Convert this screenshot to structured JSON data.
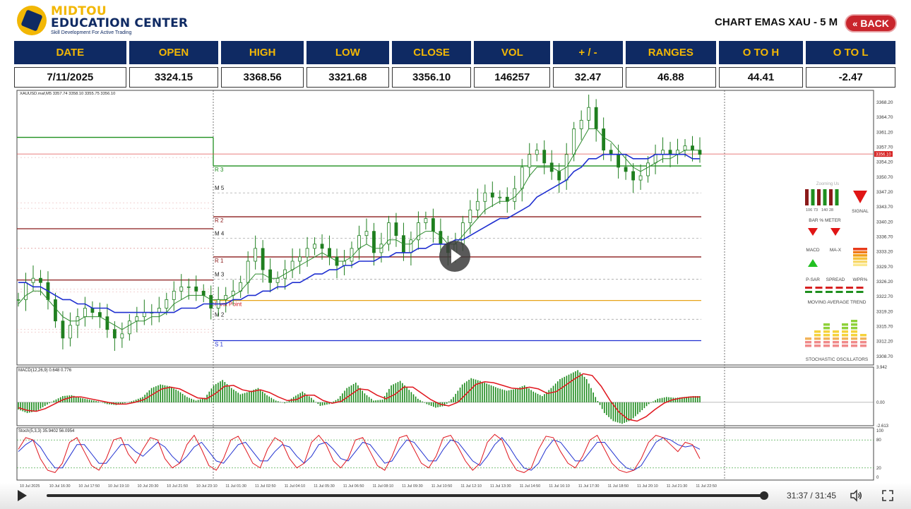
{
  "header": {
    "logo_line1": "MIDTOU",
    "logo_line2": "EDUCATION CENTER",
    "logo_line3": "Skill Development For Active Trading",
    "title": "CHART EMAS XAU - 5 M",
    "back_label": "BACK"
  },
  "stats": {
    "headers": [
      "DATE",
      "OPEN",
      "HIGH",
      "LOW",
      "CLOSE",
      "VOL",
      "+ / -",
      "RANGES",
      "O TO H",
      "O TO L"
    ],
    "values": [
      "7/11/2025",
      "3324.15",
      "3368.56",
      "3321.68",
      "3356.10",
      "146257",
      "32.47",
      "46.88",
      "44.41",
      "-2.47"
    ]
  },
  "player": {
    "time": "31:37 / 31:45",
    "progress": 0.9958
  },
  "colors": {
    "navy": "#0f2a63",
    "gold": "#f2b705",
    "back_red": "#c9252c",
    "candle_green": "#1f8f1f",
    "ema_fast": "#2e8b2e",
    "ema_slow": "#1f2fd0",
    "macd_signal": "#e0161e",
    "stoch_k": "#e0161e",
    "stoch_d": "#2030d0"
  },
  "chart_data": [
    {
      "type": "line",
      "title": "XAUUSD.maf,M5 3357.74 3358.10 3355.75 3356.10",
      "ylim": [
        3306.7,
        3371.0
      ],
      "y_ticks": [
        3368.2,
        3364.7,
        3361.2,
        3357.7,
        3354.2,
        3350.7,
        3347.2,
        3343.7,
        3340.2,
        3336.7,
        3333.2,
        3329.7,
        3326.2,
        3322.7,
        3319.2,
        3315.7,
        3312.2,
        3308.7
      ],
      "current_price_label": "3356.10",
      "x_ticks": [
        "10 Jul 2025",
        "10 Jul 16:30",
        "10 Jul 17:50",
        "10 Jul 19:10",
        "10 Jul 20:30",
        "10 Jul 21:50",
        "10 Jul 23:10",
        "11 Jul 01:30",
        "11 Jul 02:50",
        "11 Jul 04:10",
        "11 Jul 05:30",
        "11 Jul 06:50",
        "11 Jul 08:10",
        "11 Jul 09:30",
        "11 Jul 10:50",
        "11 Jul 12:10",
        "11 Jul 13:30",
        "11 Jul 14:50",
        "11 Jul 16:10",
        "11 Jul 17:30",
        "11 Jul 18:50",
        "11 Jul 20:10",
        "11 Jul 21:30",
        "11 Jul 22:50"
      ],
      "levels": [
        {
          "name": "R 3",
          "value": 3353.3,
          "color": "#1f8f1f"
        },
        {
          "name": "M 5",
          "value": 3347.0,
          "color": "#999999"
        },
        {
          "name": "R 2",
          "value": 3341.4,
          "color": "#8b1a1a"
        },
        {
          "name": "M 4",
          "value": 3336.4,
          "color": "#999999"
        },
        {
          "name": "R 1",
          "value": 3332.0,
          "color": "#8b1a1a"
        },
        {
          "name": "M 3",
          "value": 3326.8,
          "color": "#999999"
        },
        {
          "name": "Pivot Point",
          "value": 3321.8,
          "color": "#e8a318"
        },
        {
          "name": "M 2",
          "value": 3317.4,
          "color": "#999999"
        },
        {
          "name": "S 1",
          "value": 3312.4,
          "color": "#1f2fd0"
        }
      ],
      "prior_day_levels": [
        {
          "name": "prior-r3",
          "value": 3360.0,
          "color": "#1f8f1f"
        },
        {
          "name": "prior-r2",
          "value": 3338.6,
          "color": "#8b1a1a"
        },
        {
          "name": "prior-r1",
          "value": 3326.6,
          "color": "#8b1a1a"
        }
      ],
      "series": [
        {
          "key": "price",
          "values": [
            3322,
            3326,
            3327,
            3326,
            3322,
            3317,
            3313,
            3316,
            3318,
            3320,
            3319,
            3318,
            3315,
            3313,
            3314,
            3317,
            3318,
            3319,
            3319,
            3320,
            3322,
            3324,
            3325,
            3325,
            3324,
            3323,
            3320,
            3322,
            3323,
            3324,
            3326,
            3331,
            3334,
            3329,
            3326,
            3327,
            3329,
            3331,
            3332,
            3334,
            3335,
            3334,
            3332,
            3330,
            3331,
            3334,
            3337,
            3338,
            3333,
            3335,
            3340,
            3337,
            3333,
            3336,
            3340,
            3341,
            3338,
            3335,
            3333,
            3335,
            3340,
            3343,
            3345,
            3347,
            3346,
            3346,
            3345,
            3348,
            3353,
            3356,
            3357,
            3354,
            3352,
            3350,
            3356,
            3362,
            3364,
            3367,
            3362,
            3357,
            3356,
            3353,
            3352,
            3350,
            3351,
            3354,
            3356,
            3357,
            3356,
            3357,
            3358,
            3357,
            3356
          ]
        },
        {
          "key": "ema-fast",
          "values": [
            3321,
            3323,
            3324,
            3324,
            3322,
            3320,
            3318,
            3317,
            3317,
            3318,
            3318,
            3318,
            3317,
            3316,
            3315,
            3316,
            3317,
            3317,
            3318,
            3318,
            3319,
            3321,
            3322,
            3323,
            3323,
            3323,
            3322,
            3322,
            3322,
            3323,
            3324,
            3326,
            3328,
            3328,
            3327,
            3327,
            3328,
            3329,
            3330,
            3331,
            3332,
            3333,
            3332,
            3331,
            3331,
            3332,
            3334,
            3335,
            3334,
            3334,
            3336,
            3336,
            3335,
            3335,
            3337,
            3338,
            3338,
            3337,
            3335,
            3335,
            3337,
            3339,
            3341,
            3343,
            3344,
            3345,
            3345,
            3346,
            3348,
            3351,
            3353,
            3353,
            3353,
            3352,
            3353,
            3356,
            3359,
            3362,
            3362,
            3360,
            3359,
            3357,
            3355,
            3353,
            3352,
            3353,
            3354,
            3355,
            3355,
            3356,
            3357,
            3357,
            3357
          ]
        },
        {
          "key": "ema-slow",
          "values": [
            3326,
            3326,
            3325,
            3325,
            3324,
            3323,
            3322,
            3322,
            3321,
            3321,
            3320,
            3320,
            3320,
            3319,
            3319,
            3319,
            3319,
            3319,
            3319,
            3319,
            3319,
            3319,
            3320,
            3320,
            3320,
            3321,
            3321,
            3321,
            3321,
            3322,
            3322,
            3323,
            3323,
            3324,
            3324,
            3325,
            3325,
            3326,
            3326,
            3327,
            3328,
            3328,
            3329,
            3329,
            3330,
            3330,
            3331,
            3331,
            3331,
            3332,
            3332,
            3333,
            3333,
            3333,
            3334,
            3334,
            3335,
            3335,
            3335,
            3336,
            3336,
            3337,
            3338,
            3339,
            3340,
            3341,
            3341,
            3342,
            3343,
            3344,
            3346,
            3347,
            3348,
            3349,
            3350,
            3352,
            3353,
            3355,
            3355,
            3356,
            3356,
            3356,
            3356,
            3355,
            3355,
            3355,
            3356,
            3356,
            3356,
            3356,
            3356,
            3355,
            3355
          ]
        }
      ]
    },
    {
      "type": "bar",
      "title": "MACD(12,26,9) 0.648 0.776",
      "ylim": [
        -2.613,
        3.942
      ],
      "y_ticks": [
        3.942,
        0.0,
        -2.613
      ],
      "series": [
        {
          "key": "histogram",
          "values": [
            -0.8,
            -1.2,
            -1.0,
            -0.4,
            0.2,
            0.7,
            0.8,
            0.5,
            0.3,
            0.1,
            -0.2,
            -0.3,
            -0.1,
            0.2,
            0.6,
            1.6,
            2.0,
            1.8,
            1.3,
            0.6,
            0.2,
            0.5,
            1.9,
            2.5,
            1.6,
            0.9,
            1.2,
            1.6,
            0.8,
            0.2,
            -0.1,
            0.6,
            1.2,
            0.5,
            -0.4,
            -0.2,
            0.4,
            1.6,
            2.2,
            1.0,
            0.2,
            0.3,
            1.9,
            2.4,
            1.4,
            0.4,
            -0.2,
            -0.6,
            -0.4,
            0.6,
            2.0,
            2.7,
            2.4,
            2.0,
            1.6,
            1.3,
            1.5,
            1.9,
            1.2,
            0.7,
            1.6,
            2.6,
            3.1,
            3.6,
            2.6,
            0.6,
            -1.2,
            -2.1,
            -2.4,
            -2.0,
            -1.1,
            -0.2,
            0.4,
            0.6,
            0.5,
            0.6,
            0.7
          ]
        },
        {
          "key": "signal",
          "values": [
            -0.6,
            -0.9,
            -1.0,
            -0.7,
            -0.2,
            0.3,
            0.6,
            0.6,
            0.4,
            0.2,
            0.0,
            -0.2,
            -0.2,
            0.0,
            0.3,
            0.9,
            1.5,
            1.7,
            1.5,
            1.0,
            0.5,
            0.4,
            1.0,
            1.8,
            1.9,
            1.4,
            1.2,
            1.4,
            1.1,
            0.6,
            0.2,
            0.3,
            0.8,
            0.8,
            0.2,
            -0.1,
            0.1,
            0.8,
            1.5,
            1.4,
            0.8,
            0.4,
            0.9,
            1.7,
            1.7,
            1.0,
            0.3,
            -0.2,
            -0.4,
            0.0,
            1.0,
            2.0,
            2.3,
            2.2,
            1.9,
            1.6,
            1.5,
            1.7,
            1.5,
            1.0,
            1.2,
            1.9,
            2.6,
            3.2,
            3.0,
            1.8,
            0.2,
            -1.1,
            -1.9,
            -2.1,
            -1.6,
            -0.8,
            -0.1,
            0.3,
            0.5,
            0.6,
            0.6
          ]
        }
      ]
    },
    {
      "type": "line",
      "title": "Stoch(5,3,3) 35.9402 56.0954",
      "ylim": [
        0,
        100
      ],
      "y_ticks": [
        100,
        80,
        20,
        0
      ],
      "series": [
        {
          "key": "stoch-k",
          "values": [
            60,
            85,
            80,
            40,
            15,
            10,
            30,
            75,
            85,
            55,
            25,
            15,
            40,
            80,
            85,
            50,
            30,
            60,
            85,
            80,
            40,
            20,
            30,
            70,
            90,
            60,
            25,
            15,
            40,
            80,
            88,
            60,
            30,
            20,
            60,
            85,
            75,
            40,
            20,
            30,
            75,
            90,
            70,
            35,
            20,
            40,
            80,
            85,
            55,
            25,
            15,
            45,
            85,
            90,
            60,
            30,
            20,
            45,
            85,
            90,
            65,
            35,
            15,
            30,
            75,
            92,
            80,
            40,
            15,
            10,
            20,
            60,
            88,
            85,
            55,
            30,
            20,
            45,
            80,
            90,
            60,
            30,
            15,
            10,
            15,
            40,
            75,
            90,
            85,
            70,
            55,
            75,
            70,
            40
          ]
        },
        {
          "key": "stoch-d",
          "values": [
            55,
            70,
            80,
            65,
            40,
            20,
            20,
            45,
            70,
            70,
            50,
            30,
            30,
            50,
            70,
            70,
            55,
            45,
            60,
            75,
            65,
            45,
            30,
            45,
            65,
            75,
            55,
            35,
            30,
            50,
            70,
            75,
            55,
            35,
            35,
            55,
            70,
            65,
            45,
            30,
            45,
            70,
            75,
            60,
            40,
            35,
            55,
            75,
            70,
            50,
            30,
            35,
            60,
            80,
            75,
            55,
            35,
            35,
            60,
            80,
            75,
            55,
            35,
            25,
            45,
            70,
            85,
            65,
            40,
            20,
            15,
            30,
            60,
            80,
            75,
            55,
            35,
            35,
            55,
            75,
            75,
            55,
            35,
            20,
            15,
            25,
            50,
            75,
            85,
            80,
            70,
            65,
            68,
            60
          ]
        }
      ]
    }
  ],
  "panel": {
    "title": "Zooming Us",
    "bar_meter_title": "BAR % METER",
    "bar_meter_values": [
      "106",
      "73",
      "140",
      "28"
    ],
    "signal_label": "SIGNAL",
    "macd_label": "MACD",
    "mad_label": "MA-X",
    "psar_label": "P-SAR",
    "spread_label": "SPREAD",
    "wpr_label": "WPR%",
    "ma_trend_label": "MOVING AVERAGE TREND",
    "stoch_osc_label": "STOCHASTIC OSCILLATORS"
  }
}
